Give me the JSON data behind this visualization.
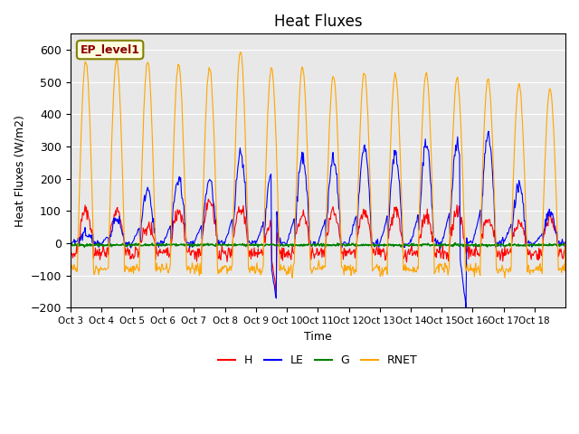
{
  "title": "Heat Fluxes",
  "ylabel": "Heat Fluxes (W/m2)",
  "xlabel": "Time",
  "ylim": [
    -200,
    650
  ],
  "annotation": "EP_level1",
  "background_color": "#e8e8e8",
  "colors": {
    "H": "red",
    "LE": "blue",
    "G": "green",
    "RNET": "orange"
  },
  "x_tick_labels": [
    "Oct 3",
    "Oct 4",
    "Oct 5",
    "Oct 6",
    "Oct 7",
    "Oct 8",
    "Oct 9",
    "Oct 10",
    "Oct 11",
    "Oct 12",
    "Oct 13",
    "Oct 14",
    "Oct 15",
    "Oct 16",
    "Oct 17",
    "Oct 18"
  ],
  "n_days": 16,
  "pts_per_day": 48
}
